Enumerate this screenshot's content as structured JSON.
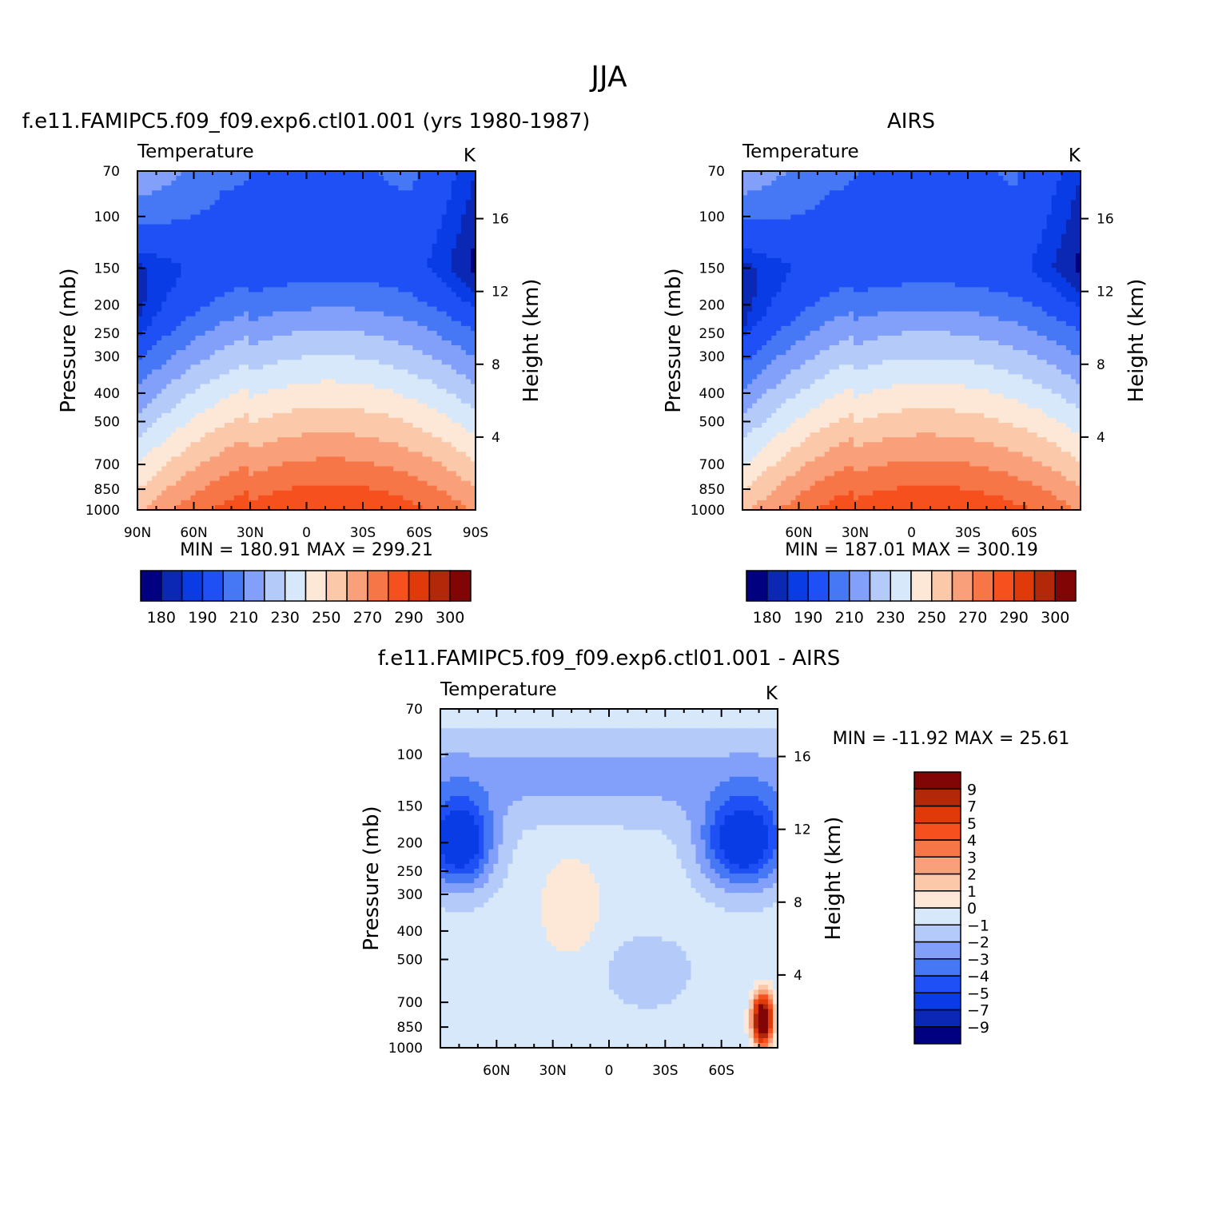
{
  "figure": {
    "title": "JJA"
  },
  "colors": {
    "abs_palette": [
      "#000080",
      "#0a28b4",
      "#0a3ce6",
      "#1e50f5",
      "#4678f5",
      "#82a0fa",
      "#b4cbfa",
      "#d7e8fa",
      "#fde8d8",
      "#fbc8aa",
      "#f9a07a",
      "#f77648",
      "#f5501e",
      "#e13a0a",
      "#b4280a",
      "#820505"
    ],
    "diff_palette": [
      "#000080",
      "#0a28b4",
      "#0a3ce6",
      "#1e50f5",
      "#4678f5",
      "#82a0fa",
      "#b4cbfa",
      "#d7e8fa",
      "#fde8d8",
      "#fbc8aa",
      "#f9a07a",
      "#f77648",
      "#f5501e",
      "#e13a0a",
      "#b4280a",
      "#820505"
    ]
  },
  "chart_data": [
    {
      "type": "heatmap",
      "id": "model",
      "title": "f.e11.FAMIPC5.f09_f09.exp6.ctl01.001 (yrs 1980-1987)",
      "left_string": "Temperature",
      "right_string": "K",
      "ylabel": "Pressure (mb)",
      "y2label": "Height (km)",
      "x_ticks": [
        "90N",
        "60N",
        "30N",
        "0",
        "30S",
        "60S",
        "90S"
      ],
      "x_tick_values": [
        90,
        60,
        30,
        0,
        -30,
        -60,
        -90
      ],
      "y_ticks": [
        70,
        100,
        150,
        200,
        250,
        300,
        400,
        500,
        700,
        850,
        1000
      ],
      "y2_ticks": [
        16,
        12,
        8,
        4
      ],
      "minmax": "MIN =  180.91   MAX =  299.21",
      "colorbar_labels": [
        "180",
        "190",
        "210",
        "230",
        "250",
        "270",
        "290",
        "300"
      ],
      "colorbar_levels": [
        180,
        185,
        190,
        200,
        210,
        220,
        230,
        240,
        250,
        260,
        270,
        280,
        290,
        295,
        300
      ],
      "xlim": [
        90,
        -90
      ],
      "ylim": [
        70,
        1000
      ],
      "log_y": true
    },
    {
      "type": "heatmap",
      "id": "obs",
      "title": "AIRS",
      "left_string": "Temperature",
      "right_string": "K",
      "ylabel": "Pressure (mb)",
      "y2label": "Height (km)",
      "x_ticks": [
        "60N",
        "30N",
        "0",
        "30S",
        "60S"
      ],
      "x_tick_values": [
        60,
        30,
        0,
        -30,
        -60
      ],
      "y_ticks": [
        70,
        100,
        150,
        200,
        250,
        300,
        400,
        500,
        700,
        850,
        1000
      ],
      "y2_ticks": [
        16,
        12,
        8,
        4
      ],
      "minmax": "MIN =  187.01   MAX =  300.19",
      "colorbar_labels": [
        "180",
        "190",
        "210",
        "230",
        "250",
        "270",
        "290",
        "300"
      ],
      "colorbar_levels": [
        180,
        185,
        190,
        200,
        210,
        220,
        230,
        240,
        250,
        260,
        270,
        280,
        290,
        295,
        300
      ],
      "xlim": [
        90,
        -90
      ],
      "ylim": [
        70,
        1000
      ],
      "log_y": true
    },
    {
      "type": "heatmap",
      "id": "diff",
      "title": "f.e11.FAMIPC5.f09_f09.exp6.ctl01.001 - AIRS",
      "left_string": "Temperature",
      "right_string": "K",
      "ylabel": "Pressure (mb)",
      "y2label": "Height (km)",
      "x_ticks": [
        "60N",
        "30N",
        "0",
        "30S",
        "60S"
      ],
      "x_tick_values": [
        60,
        30,
        0,
        -30,
        -60
      ],
      "y_ticks": [
        70,
        100,
        150,
        200,
        250,
        300,
        400,
        500,
        700,
        850,
        1000
      ],
      "y2_ticks": [
        16,
        12,
        8,
        4
      ],
      "minmax": "MIN = -11.92   MAX =   25.61",
      "colorbar_labels": [
        "9",
        "7",
        "5",
        "4",
        "3",
        "2",
        "1",
        "0",
        "-1",
        "-2",
        "-3",
        "-4",
        "-5",
        "-7",
        "-9"
      ],
      "colorbar_levels": [
        -9,
        -7,
        -5,
        -4,
        -3,
        -2,
        -1,
        0,
        1,
        2,
        3,
        4,
        5,
        7,
        9
      ],
      "xlim": [
        90,
        -90
      ],
      "ylim": [
        70,
        1000
      ],
      "log_y": true
    }
  ]
}
